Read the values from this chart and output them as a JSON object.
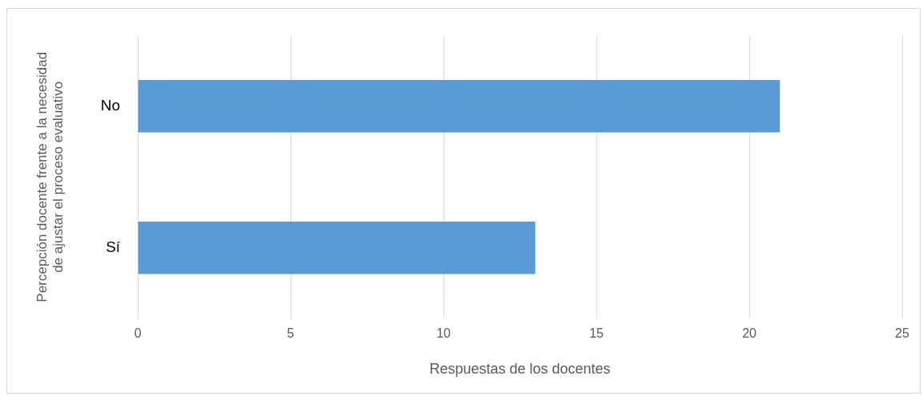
{
  "chart_data": {
    "type": "bar",
    "orientation": "horizontal",
    "categories": [
      "No",
      "Sí"
    ],
    "values": [
      21,
      13
    ],
    "color": "#5b9bd5",
    "xlabel": "Respuestas de los docentes",
    "ylabel": "Percepción docente frente a la necesidad de ajustar el proceso evaluativo",
    "xlim": [
      0,
      25
    ],
    "xticks": [
      0,
      5,
      10,
      15,
      20,
      25
    ],
    "grid": "x"
  }
}
